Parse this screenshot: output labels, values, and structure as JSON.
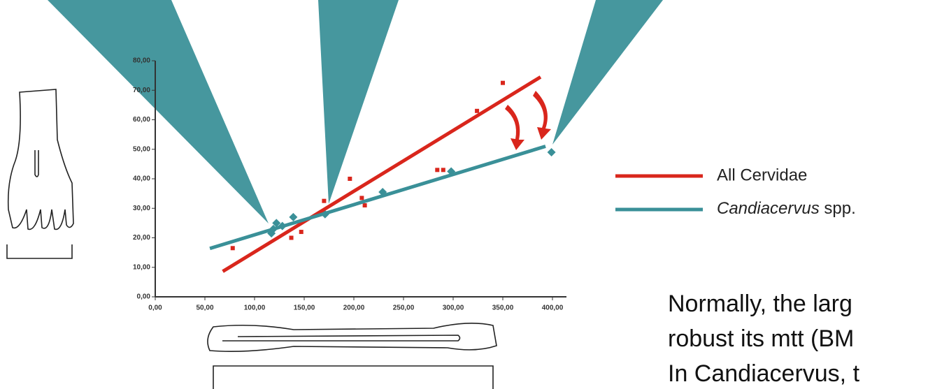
{
  "chart_data": {
    "type": "scatter",
    "xlim": [
      0,
      400
    ],
    "ylim": [
      0,
      80
    ],
    "xticks": [
      {
        "value": 0,
        "label": "0,00"
      },
      {
        "value": 50,
        "label": "50,00"
      },
      {
        "value": 100,
        "label": "100,00"
      },
      {
        "value": 150,
        "label": "150,00"
      },
      {
        "value": 200,
        "label": "200,00"
      },
      {
        "value": 250,
        "label": "250,00"
      },
      {
        "value": 300,
        "label": "300,00"
      },
      {
        "value": 350,
        "label": "350,00"
      },
      {
        "value": 400,
        "label": "400,00"
      }
    ],
    "yticks": [
      {
        "value": 0,
        "label": "0,00"
      },
      {
        "value": 10,
        "label": "10,00"
      },
      {
        "value": 20,
        "label": "20,00"
      },
      {
        "value": 30,
        "label": "30,00"
      },
      {
        "value": 40,
        "label": "40,00"
      },
      {
        "value": 50,
        "label": "50,00"
      },
      {
        "value": 60,
        "label": "60,00"
      },
      {
        "value": 70,
        "label": "70,00"
      },
      {
        "value": 80,
        "label": "80,00"
      }
    ],
    "series": [
      {
        "name": "All Cervidae",
        "color": "#d9261c",
        "marker": "square",
        "x": [
          78,
          137,
          147,
          170,
          196,
          208,
          211,
          284,
          290,
          324,
          350
        ],
        "y": [
          16.5,
          20,
          22,
          32.5,
          40,
          33.5,
          31,
          43,
          43,
          63,
          72.5
        ],
        "trend": {
          "x": [
            68,
            388
          ],
          "y": [
            8.6,
            74.5
          ]
        }
      },
      {
        "name": "Candiacervus spp.",
        "color": "#3a9098",
        "marker": "diamond",
        "x": [
          117,
          119,
          122,
          128,
          139,
          171,
          229,
          298,
          399
        ],
        "y": [
          21.5,
          23,
          25,
          24,
          27,
          28,
          35.5,
          42.5,
          49
        ],
        "trend": {
          "x": [
            55,
            393
          ],
          "y": [
            16.4,
            51
          ]
        }
      }
    ],
    "text_lines": [
      "Normally, the larg",
      "robust its mtt (BM",
      "In Candiacervus, t"
    ]
  }
}
